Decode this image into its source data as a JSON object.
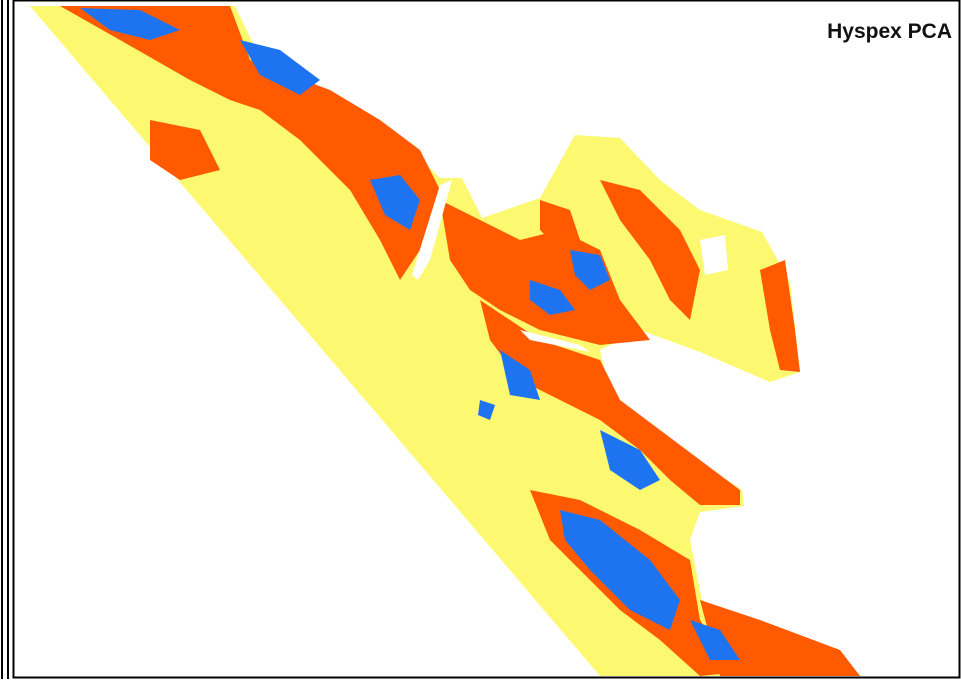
{
  "map": {
    "title": "Hyspex PCA"
  }
}
